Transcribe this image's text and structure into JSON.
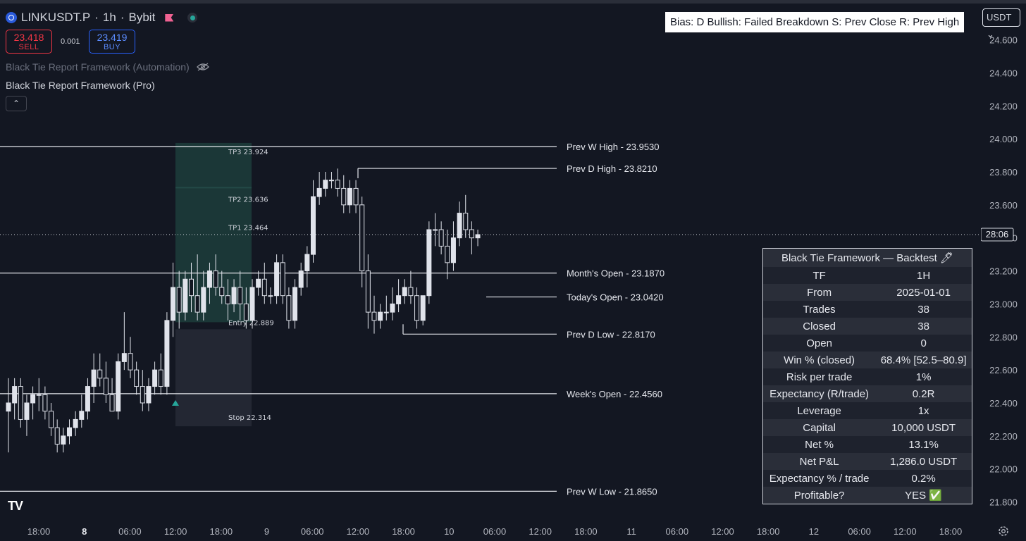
{
  "header": {
    "symbol": "LINKUSDT.P",
    "sep1": "·",
    "interval": "1h",
    "sep2": "·",
    "exchange": "Bybit",
    "sell_price": "23.418",
    "sell_label": "SELL",
    "spread": "0.001",
    "buy_price": "23.419",
    "buy_label": "BUY",
    "indicator_1": "Black Tie Report Framework (Automation)",
    "indicator_2": "Black Tie Report Framework (Pro)",
    "bias_text": "Bias: D  Bullish: Failed Breakdown  S: Prev Close  R: Prev High",
    "currency": "USDT",
    "currency_caret": "⌄",
    "collapse_icon": "⌃"
  },
  "colors": {
    "bg": "#131722",
    "sell": "#f23645",
    "buy": "#2962ff",
    "candle": "#e0e3eb",
    "tp_zone": "#1d3d3b",
    "stop_zone": "#2a2e39"
  },
  "price_axis": {
    "min": 21.7,
    "max": 24.82,
    "ticks": [
      "24.600",
      "24.400",
      "24.200",
      "24.000",
      "23.800",
      "23.600",
      "23.400",
      "23.200",
      "23.000",
      "22.800",
      "22.600",
      "22.400",
      "22.200",
      "22.000",
      "21.800"
    ],
    "countdown": "28:06",
    "countdown_price": 23.42
  },
  "time_axis": {
    "labels": [
      "18:00",
      "8",
      "06:00",
      "12:00",
      "18:00",
      "9",
      "06:00",
      "12:00",
      "18:00",
      "10",
      "06:00",
      "12:00",
      "18:00",
      "11",
      "06:00",
      "12:00",
      "18:00",
      "12",
      "06:00",
      "12:00",
      "18:00"
    ],
    "bold": [
      false,
      true,
      false,
      false,
      false,
      false,
      false,
      false,
      false,
      false,
      false,
      false,
      false,
      false,
      false,
      false,
      false,
      false,
      false,
      false,
      false
    ],
    "settings_icon": "gear-icon"
  },
  "levels": [
    {
      "label": "Prev W High - 23.9530",
      "price": 23.953
    },
    {
      "label": "Prev D High - 23.8210",
      "price": 23.821
    },
    {
      "label": "Month's Open  - 23.1870",
      "price": 23.187
    },
    {
      "label": "Today's Open - 23.0420",
      "price": 23.042
    },
    {
      "label": "Prev D Low  - 22.8170",
      "price": 22.817
    },
    {
      "label": "Week's Open   - 22.4560",
      "price": 22.456
    },
    {
      "label": "Prev W Low  - 21.8650",
      "price": 21.865
    }
  ],
  "trade": {
    "tp3": {
      "label": "TP3",
      "value": "23.924",
      "price": 23.924
    },
    "tp2": {
      "label": "TP2",
      "value": "23.636",
      "price": 23.636
    },
    "tp1": {
      "label": "TP1",
      "value": "23.464",
      "price": 23.464
    },
    "entry": {
      "label": "Entry",
      "value": "22.889",
      "price": 22.889
    },
    "stop": {
      "label": "Stop",
      "value": "22.314",
      "price": 22.314
    }
  },
  "backtest": {
    "title": "Black Tie Framework — Backtest 🖊",
    "rows": [
      {
        "k": "TF",
        "v": "1H"
      },
      {
        "k": "From",
        "v": "2025-01-01"
      },
      {
        "k": "Trades",
        "v": "38"
      },
      {
        "k": "Closed",
        "v": "38"
      },
      {
        "k": "Open",
        "v": "0"
      },
      {
        "k": "Win % (closed)",
        "v": "68.4% [52.5–80.9]"
      },
      {
        "k": "Risk per trade",
        "v": "1%"
      },
      {
        "k": "Expectancy (R/trade)",
        "v": "0.2R"
      },
      {
        "k": "Leverage",
        "v": "1x"
      },
      {
        "k": "Capital",
        "v": "10,000 USDT"
      },
      {
        "k": "Net %",
        "v": "13.1%"
      },
      {
        "k": "Net P&L",
        "v": "1,286.0 USDT"
      },
      {
        "k": "Expectancy % / trade",
        "v": "0.2%"
      },
      {
        "k": "Profitable?",
        "v": "YES ✅"
      }
    ]
  },
  "chart_data": {
    "type": "candlestick",
    "interval": "1h",
    "candles": [
      [
        22.35,
        22.55,
        22.1,
        22.4
      ],
      [
        22.4,
        22.55,
        22.3,
        22.5
      ],
      [
        22.5,
        22.55,
        22.25,
        22.3
      ],
      [
        22.3,
        22.45,
        22.2,
        22.4
      ],
      [
        22.4,
        22.5,
        22.3,
        22.45
      ],
      [
        22.45,
        22.55,
        22.35,
        22.45
      ],
      [
        22.45,
        22.5,
        22.3,
        22.35
      ],
      [
        22.35,
        22.4,
        22.2,
        22.25
      ],
      [
        22.25,
        22.3,
        22.1,
        22.15
      ],
      [
        22.15,
        22.25,
        22.1,
        22.2
      ],
      [
        22.2,
        22.3,
        22.15,
        22.25
      ],
      [
        22.25,
        22.35,
        22.2,
        22.3
      ],
      [
        22.3,
        22.45,
        22.25,
        22.35
      ],
      [
        22.35,
        22.55,
        22.3,
        22.5
      ],
      [
        22.5,
        22.7,
        22.4,
        22.6
      ],
      [
        22.6,
        22.7,
        22.5,
        22.55
      ],
      [
        22.55,
        22.65,
        22.4,
        22.45
      ],
      [
        22.45,
        22.55,
        22.35,
        22.35
      ],
      [
        22.35,
        22.7,
        22.3,
        22.65
      ],
      [
        22.65,
        22.95,
        22.6,
        22.7
      ],
      [
        22.7,
        22.8,
        22.55,
        22.6
      ],
      [
        22.6,
        22.65,
        22.45,
        22.5
      ],
      [
        22.5,
        22.6,
        22.35,
        22.4
      ],
      [
        22.4,
        22.55,
        22.35,
        22.5
      ],
      [
        22.5,
        22.65,
        22.45,
        22.6
      ],
      [
        22.6,
        22.7,
        22.45,
        22.5
      ],
      [
        22.5,
        22.95,
        22.45,
        22.9
      ],
      [
        22.9,
        23.25,
        22.8,
        23.1
      ],
      [
        23.1,
        23.2,
        22.85,
        22.95
      ],
      [
        22.95,
        23.2,
        22.9,
        23.15
      ],
      [
        23.15,
        23.25,
        22.95,
        23.05
      ],
      [
        23.05,
        23.3,
        22.9,
        22.95
      ],
      [
        22.95,
        23.2,
        22.9,
        23.1
      ],
      [
        23.1,
        23.25,
        23.0,
        23.2
      ],
      [
        23.2,
        23.3,
        23.05,
        23.1
      ],
      [
        23.1,
        23.2,
        23.0,
        23.05
      ],
      [
        23.05,
        23.15,
        22.9,
        23.0
      ],
      [
        23.0,
        23.15,
        22.95,
        23.1
      ],
      [
        23.1,
        23.2,
        22.9,
        23.0
      ],
      [
        23.0,
        23.1,
        22.85,
        22.9
      ],
      [
        22.9,
        23.15,
        22.85,
        23.1
      ],
      [
        23.1,
        23.2,
        23.05,
        23.15
      ],
      [
        23.15,
        23.25,
        23.0,
        23.05
      ],
      [
        23.05,
        23.1,
        23.0,
        23.05
      ],
      [
        23.05,
        23.3,
        23.0,
        23.25
      ],
      [
        23.25,
        23.3,
        23.0,
        23.05
      ],
      [
        23.05,
        23.1,
        22.85,
        22.9
      ],
      [
        22.9,
        23.15,
        22.85,
        23.1
      ],
      [
        23.1,
        23.25,
        23.05,
        23.2
      ],
      [
        23.2,
        23.35,
        23.1,
        23.3
      ],
      [
        23.3,
        23.75,
        23.25,
        23.65
      ],
      [
        23.65,
        23.8,
        23.6,
        23.7
      ],
      [
        23.7,
        23.8,
        23.65,
        23.75
      ],
      [
        23.75,
        23.8,
        23.7,
        23.75
      ],
      [
        23.75,
        23.82,
        23.65,
        23.7
      ],
      [
        23.7,
        23.78,
        23.55,
        23.6
      ],
      [
        23.6,
        23.75,
        23.55,
        23.7
      ],
      [
        23.7,
        23.75,
        23.55,
        23.6
      ],
      [
        23.6,
        23.65,
        23.1,
        23.2
      ],
      [
        23.2,
        23.3,
        22.85,
        22.95
      ],
      [
        22.95,
        23.05,
        22.82,
        22.9
      ],
      [
        22.9,
        23.0,
        22.85,
        22.95
      ],
      [
        22.95,
        23.05,
        22.9,
        22.95
      ],
      [
        22.95,
        23.1,
        22.9,
        23.0
      ],
      [
        23.0,
        23.15,
        22.95,
        23.05
      ],
      [
        23.05,
        23.15,
        23.0,
        23.1
      ],
      [
        23.1,
        23.2,
        23.0,
        23.05
      ],
      [
        23.05,
        23.1,
        22.85,
        22.9
      ],
      [
        22.9,
        23.05,
        22.87,
        23.05
      ],
      [
        23.05,
        23.5,
        23.0,
        23.45
      ],
      [
        23.45,
        23.55,
        23.35,
        23.45
      ],
      [
        23.45,
        23.5,
        23.3,
        23.35
      ],
      [
        23.35,
        23.45,
        23.15,
        23.25
      ],
      [
        23.25,
        23.5,
        23.2,
        23.4
      ],
      [
        23.4,
        23.62,
        23.35,
        23.55
      ],
      [
        23.55,
        23.66,
        23.4,
        23.45
      ],
      [
        23.45,
        23.5,
        23.3,
        23.4
      ],
      [
        23.4,
        23.45,
        23.35,
        23.42
      ]
    ]
  }
}
